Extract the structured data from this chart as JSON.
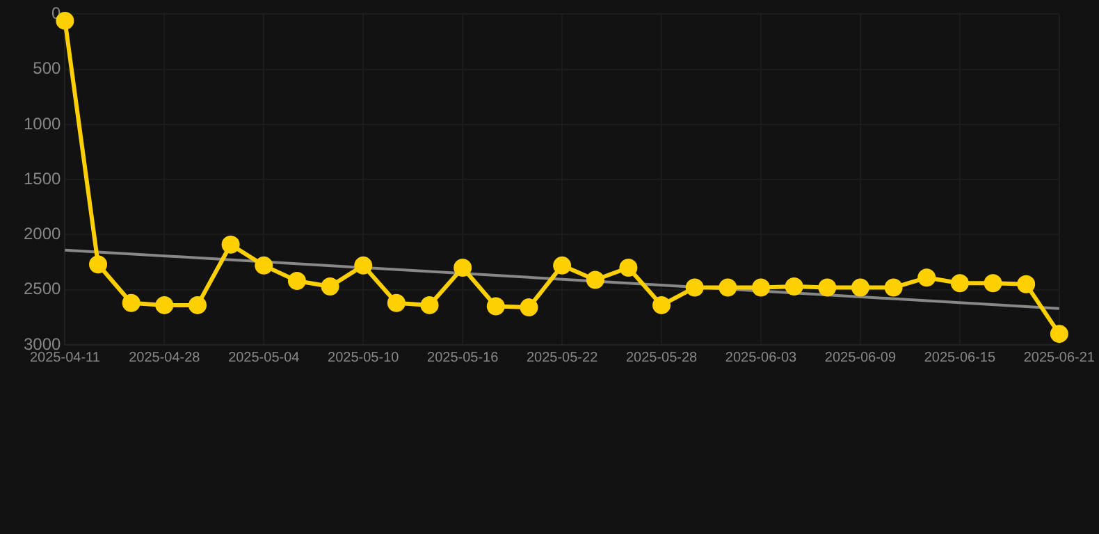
{
  "chart_data": {
    "type": "line",
    "categories": [
      "2025-04-11",
      null,
      null,
      "2025-04-28",
      null,
      null,
      "2025-05-04",
      null,
      null,
      "2025-05-10",
      null,
      null,
      "2025-05-16",
      null,
      null,
      "2025-05-22",
      null,
      null,
      "2025-05-28",
      null,
      null,
      "2025-06-03",
      null,
      null,
      "2025-06-09",
      null,
      null,
      "2025-06-15",
      null,
      null,
      "2025-06-21"
    ],
    "series": [
      {
        "color": "#ffd000",
        "values": [
          60,
          2270,
          2620,
          2640,
          2640,
          2090,
          2280,
          2420,
          2470,
          2280,
          2620,
          2640,
          2300,
          2650,
          2660,
          2280,
          2410,
          2300,
          2640,
          2480,
          2480,
          2480,
          2470,
          2480,
          2480,
          2480,
          2390,
          2440,
          2440,
          2450,
          2900
        ]
      },
      {
        "type": "line",
        "color": "#888888",
        "marker": "none",
        "values": [
          2140,
          null,
          null,
          null,
          null,
          null,
          null,
          null,
          null,
          null,
          null,
          null,
          null,
          null,
          null,
          null,
          null,
          null,
          null,
          null,
          null,
          null,
          null,
          null,
          null,
          null,
          null,
          null,
          null,
          null,
          2670
        ]
      }
    ],
    "ylim": [
      3000,
      0
    ],
    "yticks": [
      0,
      500,
      1000,
      1500,
      2000,
      2500,
      3000
    ],
    "grid": true,
    "marker": "circle"
  }
}
